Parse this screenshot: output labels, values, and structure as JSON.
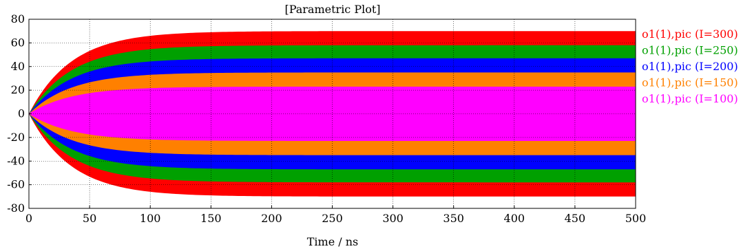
{
  "chart_data": {
    "type": "area",
    "title": "[Parametric Plot]",
    "xlabel": "Time / ns",
    "ylabel": "",
    "xlim": [
      0,
      500
    ],
    "ylim": [
      -80,
      80
    ],
    "x_ticks": [
      0,
      50,
      100,
      150,
      200,
      250,
      300,
      350,
      400,
      450,
      500
    ],
    "y_ticks": [
      80,
      60,
      40,
      20,
      0,
      -20,
      -40,
      -60,
      -80
    ],
    "grid": true,
    "legend_position": "right",
    "envelope_time_constant_ns": 35,
    "series": [
      {
        "name": "o1(1),pic (I=300)",
        "color": "#ff0000",
        "amplitude": 70
      },
      {
        "name": "o1(1),pic (I=250)",
        "color": "#00a000",
        "amplitude": 58
      },
      {
        "name": "o1(1),pic (I=200)",
        "color": "#0000ff",
        "amplitude": 47
      },
      {
        "name": "o1(1),pic (I=150)",
        "color": "#ff8000",
        "amplitude": 35
      },
      {
        "name": "o1(1),pic (I=100)",
        "color": "#ff00ff",
        "amplitude": 23
      }
    ]
  }
}
